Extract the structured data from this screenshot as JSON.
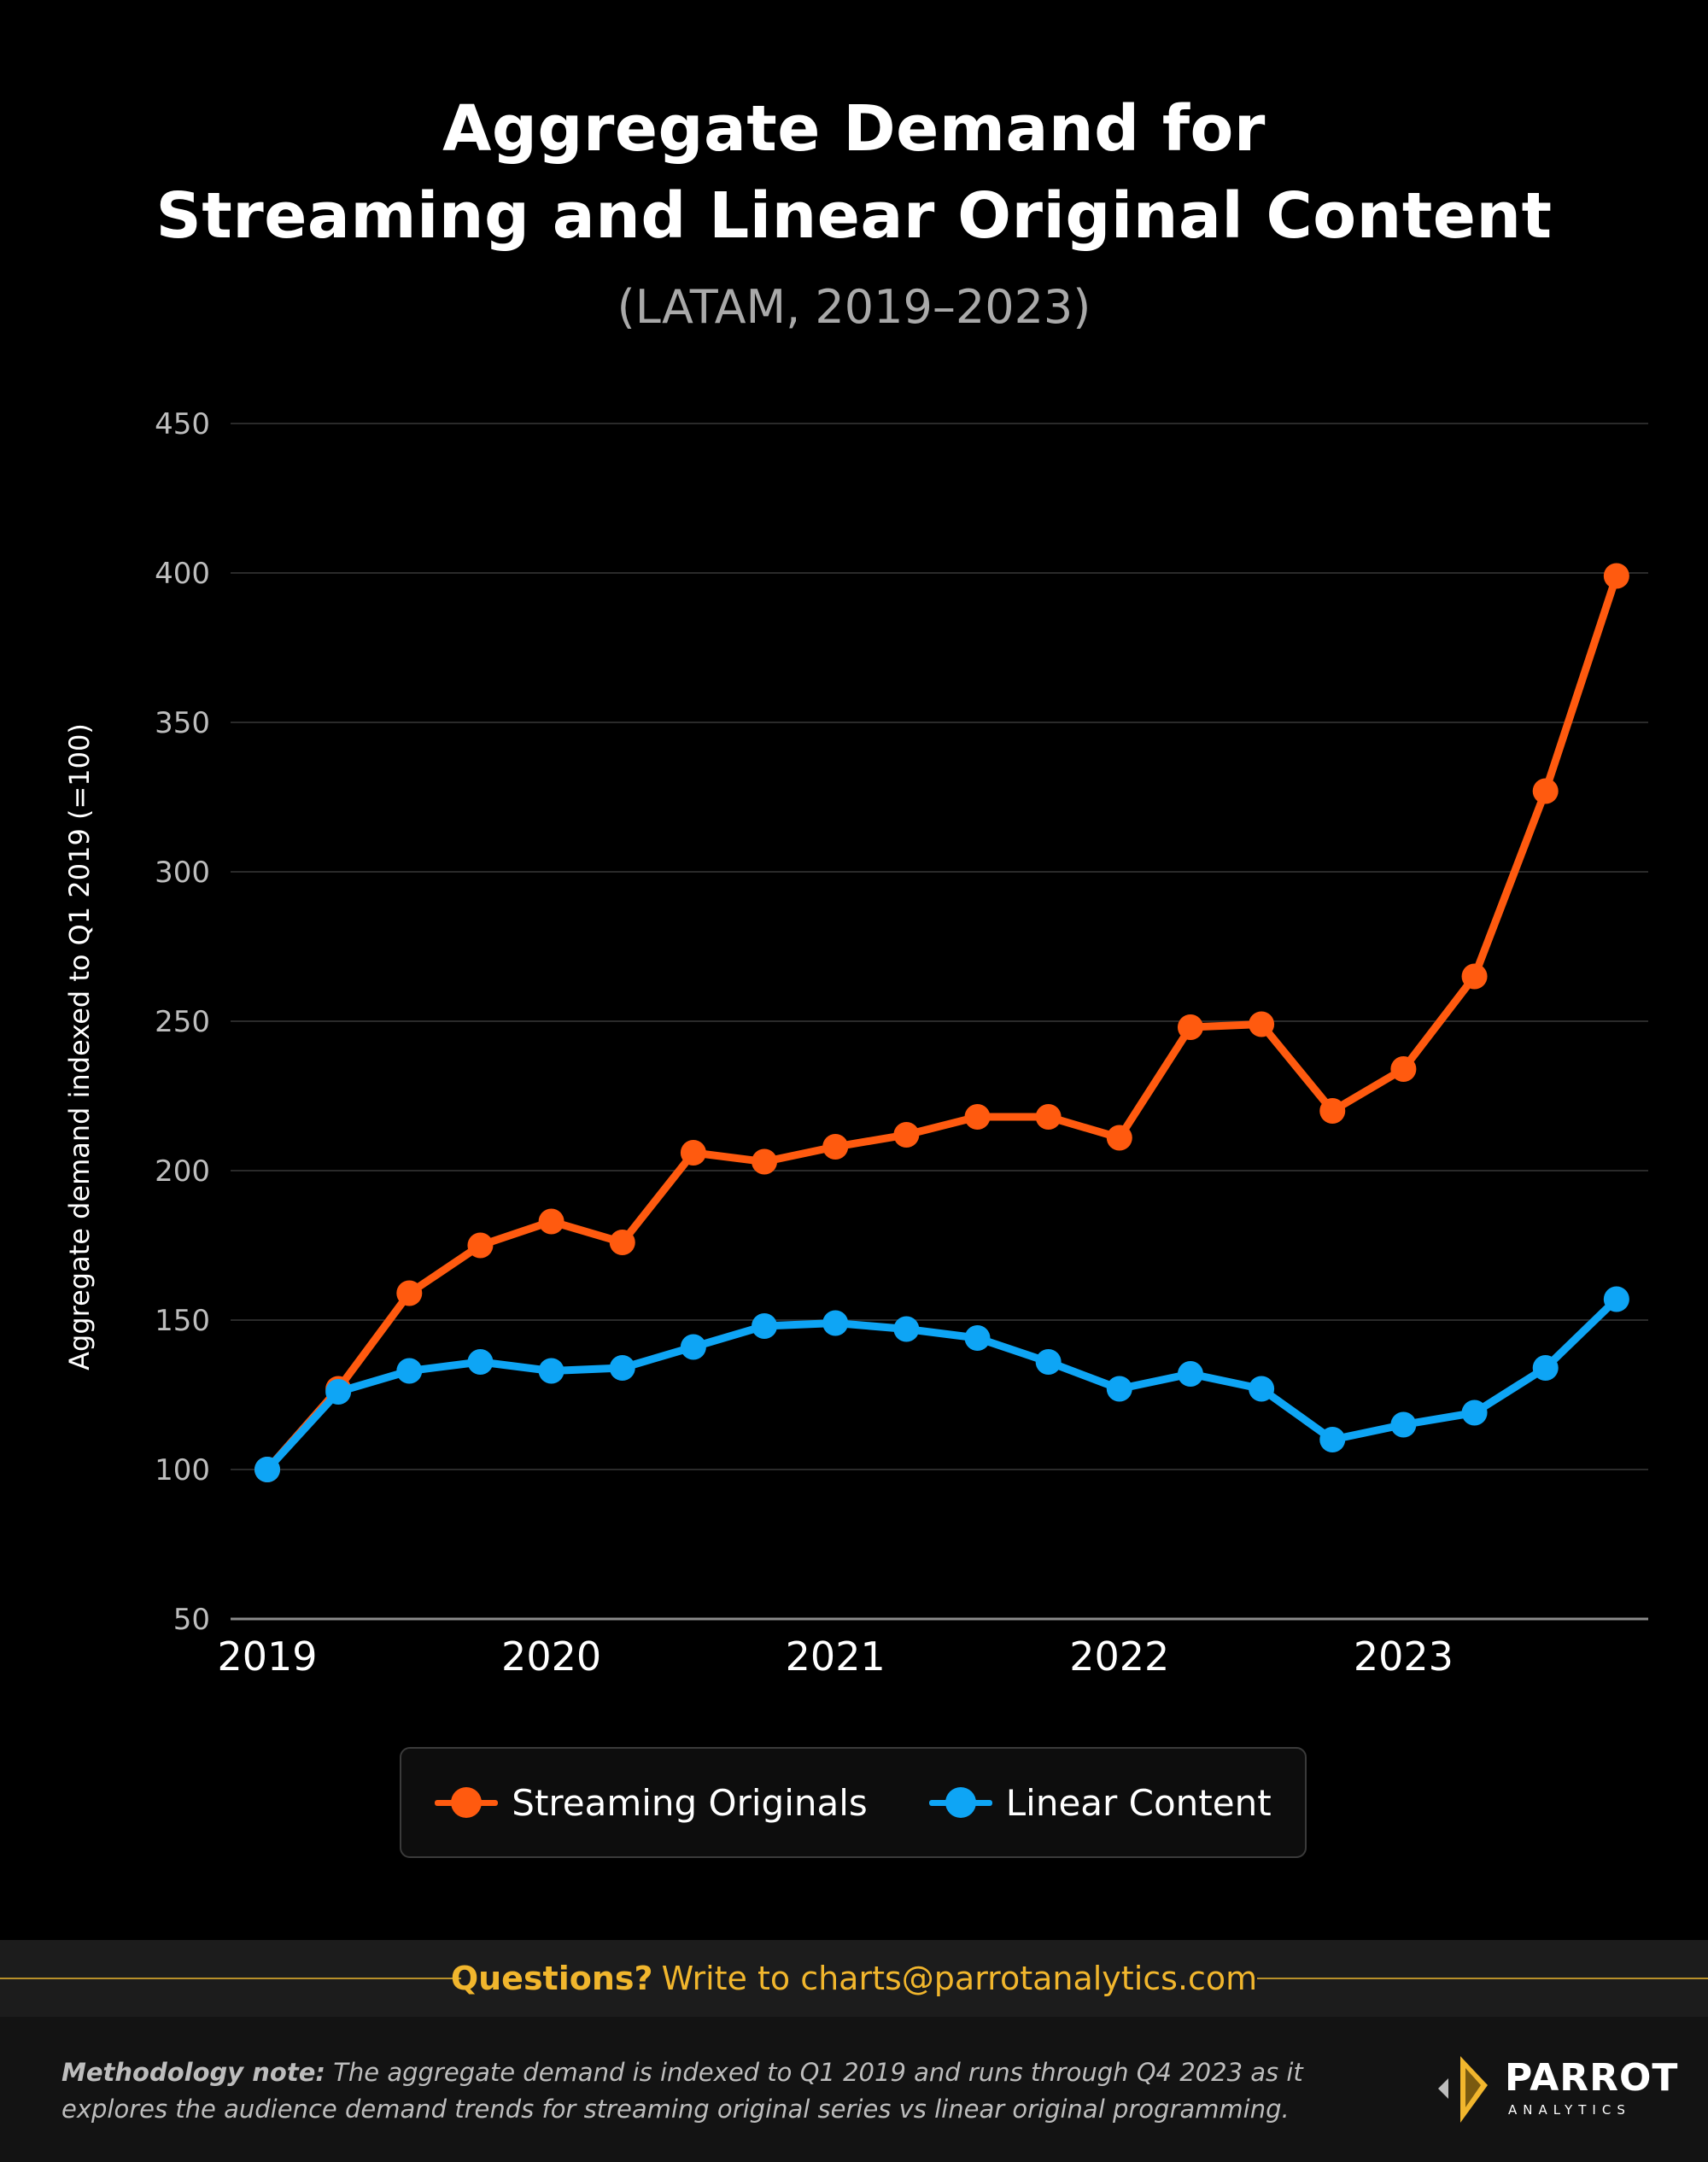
{
  "header": {
    "title_line1": "Aggregate Demand for",
    "title_line2": "Streaming and Linear Original Content",
    "subtitle": "(LATAM, 2019–2023)"
  },
  "chart_data": {
    "type": "line",
    "title": "Aggregate Demand for Streaming and Linear Original Content",
    "subtitle": "(LATAM, 2019–2023)",
    "ylabel": "Aggregate demand indexed to Q1 2019 (=100)",
    "xlabel": "",
    "ylim": [
      50,
      450
    ],
    "yticks": [
      50,
      100,
      150,
      200,
      250,
      300,
      350,
      400,
      450
    ],
    "x": [
      "Q1 2019",
      "Q2 2019",
      "Q3 2019",
      "Q4 2019",
      "Q1 2020",
      "Q2 2020",
      "Q3 2020",
      "Q4 2020",
      "Q1 2021",
      "Q2 2021",
      "Q3 2021",
      "Q4 2021",
      "Q1 2022",
      "Q2 2022",
      "Q3 2022",
      "Q4 2022",
      "Q1 2023",
      "Q2 2023",
      "Q3 2023",
      "Q4 2023"
    ],
    "xtick_labels": [
      {
        "index": 0,
        "label": "2019"
      },
      {
        "index": 4,
        "label": "2020"
      },
      {
        "index": 8,
        "label": "2021"
      },
      {
        "index": 12,
        "label": "2022"
      },
      {
        "index": 16,
        "label": "2023"
      }
    ],
    "grid": true,
    "legend_position": "bottom-center",
    "series": [
      {
        "name": "Streaming Originals",
        "color": "#ff5a0f",
        "values": [
          100,
          127,
          159,
          175,
          183,
          176,
          206,
          203,
          208,
          212,
          218,
          218,
          211,
          248,
          249,
          220,
          234,
          265,
          327,
          399
        ]
      },
      {
        "name": "Linear Content",
        "color": "#0ea5f5",
        "values": [
          100,
          126,
          133,
          136,
          133,
          134,
          141,
          148,
          149,
          147,
          144,
          136,
          127,
          132,
          127,
          110,
          115,
          119,
          134,
          157
        ]
      }
    ]
  },
  "legend": {
    "streaming_label": "Streaming Originals",
    "linear_label": "Linear Content"
  },
  "footer": {
    "question": "Questions?",
    "contact": "Write to charts@parrotanalytics.com",
    "note_label": "Methodology note:",
    "note_text": "The aggregate demand is indexed to Q1 2019 and runs through Q4 2023 as it explores the audience demand trends for streaming original series vs linear original programming.",
    "logo_name": "PARROT",
    "logo_sub": "ANALYTICS"
  },
  "colors": {
    "background": "#000000",
    "accent": "#f1b62d",
    "streaming": "#ff5a0f",
    "linear": "#0ea5f5"
  }
}
